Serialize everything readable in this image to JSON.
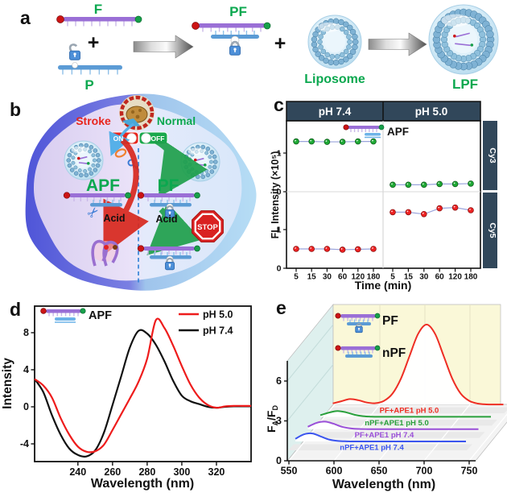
{
  "colors": {
    "accent_green": "#0ba84f",
    "accent_red": "#e8251d",
    "navy_header": "#31475a",
    "strand_purple": "#9a6fd6",
    "strand_blue": "#5b9bd5",
    "wall_yellow": "#faf8d8",
    "wall_cyan": "#def0ee",
    "cell_left": "#e7def5",
    "cell_right": "#dde6fa"
  },
  "panel_a": {
    "label": "a",
    "f": "F",
    "plus": "+",
    "p": "P",
    "pf": "PF",
    "liposome": "Liposome",
    "lpf": "LPF"
  },
  "panel_b": {
    "label": "b",
    "stroke": "Stroke",
    "normal": "Normal",
    "on": "ON",
    "off": "OFF",
    "apf": "APF",
    "pf": "PF",
    "acid_left": "Acid",
    "acid_right": "Acid",
    "stop": "STOP"
  },
  "panel_c": {
    "label": "c",
    "annotation": "APF"
  },
  "panel_d": {
    "label": "d",
    "annotation": "APF"
  },
  "panel_e": {
    "label": "e",
    "legend": [
      "PF",
      "nPF"
    ],
    "ylabel_parts": [
      "F",
      "A",
      "/F",
      "D"
    ]
  },
  "chart_data": [
    {
      "panel": "c",
      "type": "scatter",
      "columns": [
        "pH 7.4",
        "pH 5.0"
      ],
      "rows": [
        "Cy3",
        "Cy5"
      ],
      "xlabel": "Time (min)",
      "ylabel": "FL Intensity (×10⁵)",
      "x_ticks": [
        5,
        15,
        30,
        60,
        120,
        180
      ],
      "y_ticks": [
        0,
        1
      ],
      "ylim_per_row": [
        0,
        1.9
      ],
      "annotation": "APF",
      "grid": false,
      "series": [
        {
          "row": "Cy3",
          "column": "pH 7.4",
          "color": "#1faa35",
          "values": [
            1.3,
            1.3,
            1.29,
            1.29,
            1.3,
            1.3
          ]
        },
        {
          "row": "Cy3",
          "column": "pH 5.0",
          "color": "#1faa35",
          "values": [
            0.18,
            0.18,
            0.18,
            0.2,
            0.2,
            0.21
          ]
        },
        {
          "row": "Cy5",
          "column": "pH 7.4",
          "color": "#ee2222",
          "values": [
            0.5,
            0.5,
            0.5,
            0.48,
            0.49,
            0.5
          ]
        },
        {
          "row": "Cy5",
          "column": "pH 5.0",
          "color": "#ee2222",
          "values": [
            1.45,
            1.45,
            1.4,
            1.55,
            1.57,
            1.5
          ]
        }
      ]
    },
    {
      "panel": "d",
      "type": "line",
      "xlabel": "Wavelength (nm)",
      "ylabel": "Intensity",
      "xlim": [
        215,
        340
      ],
      "ylim": [
        -5.9,
        10.9
      ],
      "x_ticks": [
        240,
        260,
        280,
        300,
        320
      ],
      "y_ticks": [
        -4,
        0,
        4,
        8
      ],
      "annotation": "APF",
      "legend_position": "top-right",
      "x": [
        215,
        220,
        225,
        230,
        235,
        240,
        245,
        250,
        255,
        260,
        265,
        270,
        275,
        280,
        285,
        290,
        295,
        300,
        305,
        310,
        315,
        320,
        325,
        330,
        335,
        340
      ],
      "series": [
        {
          "name": "pH 5.0",
          "color": "#ee1c1c",
          "y": [
            3.0,
            2.3,
            1.0,
            -1.2,
            -3.0,
            -4.3,
            -4.85,
            -4.8,
            -4.1,
            -2.5,
            -0.8,
            0.9,
            2.7,
            5.2,
            9.35,
            8.5,
            6.6,
            4.4,
            2.4,
            1.0,
            0.2,
            -0.1,
            0.05,
            0.1,
            0.1,
            0.1
          ]
        },
        {
          "name": "pH 7.4",
          "color": "#111111",
          "y": [
            3.0,
            1.6,
            -0.9,
            -3.0,
            -4.5,
            -5.2,
            -5.35,
            -4.7,
            -2.8,
            0.2,
            3.3,
            6.4,
            8.2,
            7.9,
            6.7,
            4.9,
            2.8,
            1.2,
            0.6,
            0.3,
            0.0,
            -0.1,
            0.0,
            0.05,
            0.05,
            0.05
          ]
        }
      ]
    },
    {
      "panel": "e",
      "type": "line-3d-waterfall",
      "xlabel": "Wavelength (nm)",
      "ylabel": "FA/FD",
      "xlim": [
        550,
        750
      ],
      "x_ticks": [
        550,
        600,
        650,
        700,
        750
      ],
      "y_ticks": [
        0,
        3,
        6
      ],
      "x": [
        550,
        560,
        570,
        580,
        590,
        600,
        610,
        620,
        630,
        640,
        650,
        660,
        670,
        680,
        690,
        700,
        710,
        720,
        730,
        740,
        750
      ],
      "series": [
        {
          "name": "PF+APE1 pH 5.0",
          "color": "#ee2e24",
          "depth": 3,
          "y": [
            0.08,
            0.25,
            0.42,
            0.33,
            0.15,
            0.1,
            0.28,
            0.84,
            2.02,
            3.76,
            5.47,
            6.2,
            5.47,
            3.76,
            2.02,
            0.84,
            0.28,
            0.07,
            0.01,
            0.0,
            0.0
          ]
        },
        {
          "name": "nPF+APE1 pH 5.0",
          "color": "#2aa03c",
          "depth": 2,
          "y": [
            0.12,
            0.32,
            0.45,
            0.35,
            0.16,
            0.05,
            0.01,
            0,
            0,
            0,
            0,
            0,
            0,
            0,
            0,
            0,
            0,
            0,
            0,
            0,
            0
          ]
        },
        {
          "name": "PF+APE1 pH 7.4",
          "color": "#9a4fd8",
          "depth": 1,
          "y": [
            0.18,
            0.48,
            0.58,
            0.42,
            0.18,
            0.06,
            0.01,
            0,
            0,
            0,
            0,
            0,
            0,
            0,
            0,
            0,
            0,
            0,
            0,
            0,
            0
          ]
        },
        {
          "name": "nPF+APE1 pH 7.4",
          "color": "#3b55ef",
          "depth": 0,
          "y": [
            0.2,
            0.55,
            0.62,
            0.38,
            0.14,
            0.04,
            0.01,
            0,
            0,
            0,
            0,
            0,
            0,
            0,
            0,
            0,
            0,
            0,
            0,
            0,
            0
          ]
        }
      ]
    }
  ]
}
